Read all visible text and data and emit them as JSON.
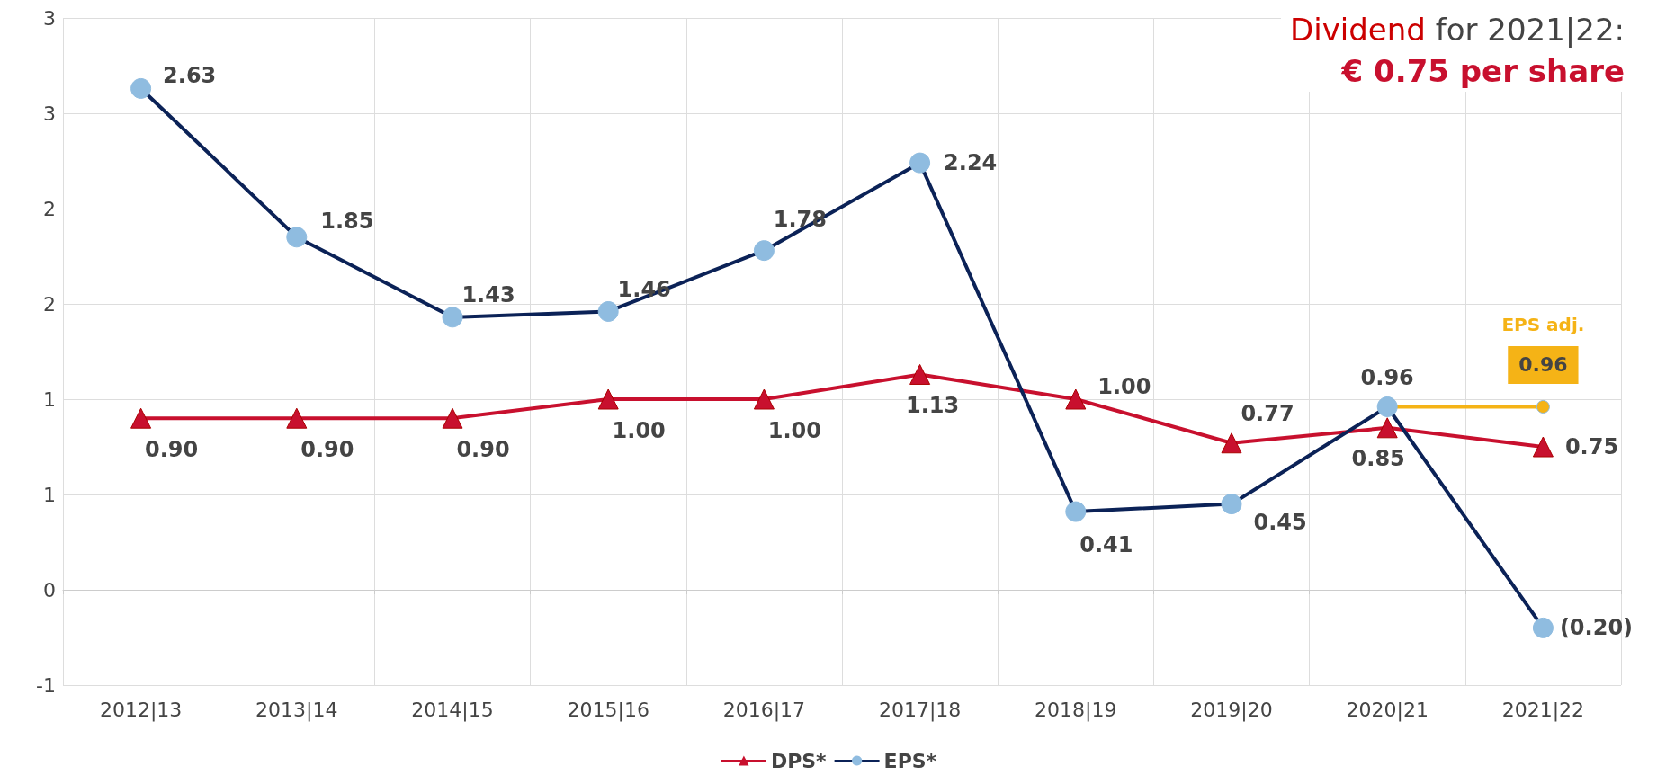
{
  "chart_data": {
    "type": "line",
    "title": "Dividend for 2021|22:",
    "subtitle": "€ 0.75 per share",
    "categories": [
      "2012|13",
      "2013|14",
      "2014|15",
      "2015|16",
      "2016|17",
      "2017|18",
      "2018|19",
      "2019|20",
      "2020|21",
      "2021|22"
    ],
    "series": [
      {
        "name": "DPS*",
        "color": "#c8102e",
        "marker": "triangle",
        "values": [
          0.9,
          0.9,
          0.9,
          1.0,
          1.0,
          1.13,
          1.0,
          0.77,
          0.85,
          0.75
        ],
        "value_labels": [
          "0.90",
          "0.90",
          "0.90",
          "1.00",
          "1.00",
          "1.13",
          "1.00",
          "0.77",
          "0.85",
          "0.75"
        ]
      },
      {
        "name": "EPS*",
        "color": "#0b2257",
        "marker": "circle",
        "values": [
          2.63,
          1.85,
          1.43,
          1.46,
          1.78,
          2.24,
          0.41,
          0.45,
          0.96,
          -0.2
        ],
        "value_labels": [
          "2.63",
          "1.85",
          "1.43",
          "1.46",
          "1.78",
          "2.24",
          "0.41",
          "0.45",
          "0.96",
          "(0.20)"
        ]
      },
      {
        "name": "EPS adj.",
        "color": "#f5b316",
        "marker": "circle",
        "values": [
          null,
          null,
          null,
          null,
          null,
          null,
          null,
          null,
          0.96,
          0.96
        ],
        "value_labels": [
          null,
          null,
          null,
          null,
          null,
          null,
          null,
          null,
          null,
          "0.96"
        ]
      }
    ],
    "ylim": [
      -0.5,
      3
    ],
    "yticks": [
      {
        "value": -0.5,
        "label": "-1"
      },
      0,
      {
        "value": 0.5,
        "label": "1"
      },
      1,
      {
        "value": 1.5,
        "label": "2"
      },
      2,
      {
        "value": 2.5,
        "label": "3"
      },
      3
    ],
    "grid": true,
    "legend": "bottom"
  }
}
